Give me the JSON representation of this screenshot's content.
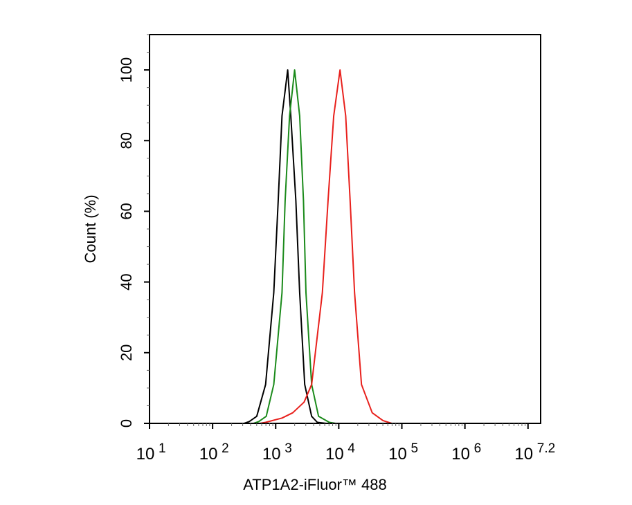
{
  "chart_data": {
    "type": "line",
    "title": "",
    "xlabel": "ATP1A2-iFluor™ 488",
    "ylabel": "Count  (%)",
    "x_scale": "log",
    "xlim_log10": [
      1,
      7.2
    ],
    "ylim": [
      0,
      110
    ],
    "x_tick_labels": [
      {
        "base": "10",
        "exp": "1"
      },
      {
        "base": "10",
        "exp": "2"
      },
      {
        "base": "10",
        "exp": "3"
      },
      {
        "base": "10",
        "exp": "4"
      },
      {
        "base": "10",
        "exp": "5"
      },
      {
        "base": "10",
        "exp": "6"
      },
      {
        "base": "10",
        "exp": "7.2"
      }
    ],
    "y_ticks": [
      0,
      20,
      40,
      60,
      80,
      100
    ],
    "y_tick_labels": [
      "0",
      "20",
      "40",
      "60",
      "80",
      "100"
    ],
    "grid": false,
    "series": [
      {
        "color": "#000000",
        "log10_x": [
          1.0,
          2.5,
          2.58,
          2.7,
          2.84,
          2.97,
          3.04,
          3.1,
          3.19,
          3.24,
          3.32,
          3.38,
          3.46,
          3.57,
          3.66,
          3.8,
          7.2
        ],
        "y": [
          0,
          0,
          0.5,
          2,
          11,
          37,
          63,
          87,
          100,
          87,
          63,
          37,
          11,
          2,
          0.3,
          0,
          0
        ]
      },
      {
        "color": "#1a8a1a",
        "log10_x": [
          1.0,
          2.65,
          2.73,
          2.85,
          2.97,
          3.1,
          3.15,
          3.22,
          3.3,
          3.38,
          3.44,
          3.48,
          3.57,
          3.68,
          3.85,
          3.95,
          7.2
        ],
        "y": [
          0,
          0,
          0.5,
          2,
          11,
          37,
          63,
          87,
          100,
          87,
          63,
          37,
          11,
          2,
          0.3,
          0,
          0
        ]
      },
      {
        "color": "#e8201c",
        "log10_x": [
          1.0,
          2.75,
          2.84,
          3.1,
          3.27,
          3.45,
          3.57,
          3.74,
          3.83,
          3.92,
          4.02,
          4.11,
          4.18,
          4.25,
          4.36,
          4.53,
          4.7,
          4.84,
          7.2
        ],
        "y": [
          0,
          0,
          0.3,
          1.5,
          3,
          6,
          11,
          37,
          63,
          87,
          100,
          87,
          63,
          37,
          11,
          3,
          0.8,
          0,
          0
        ]
      }
    ]
  }
}
